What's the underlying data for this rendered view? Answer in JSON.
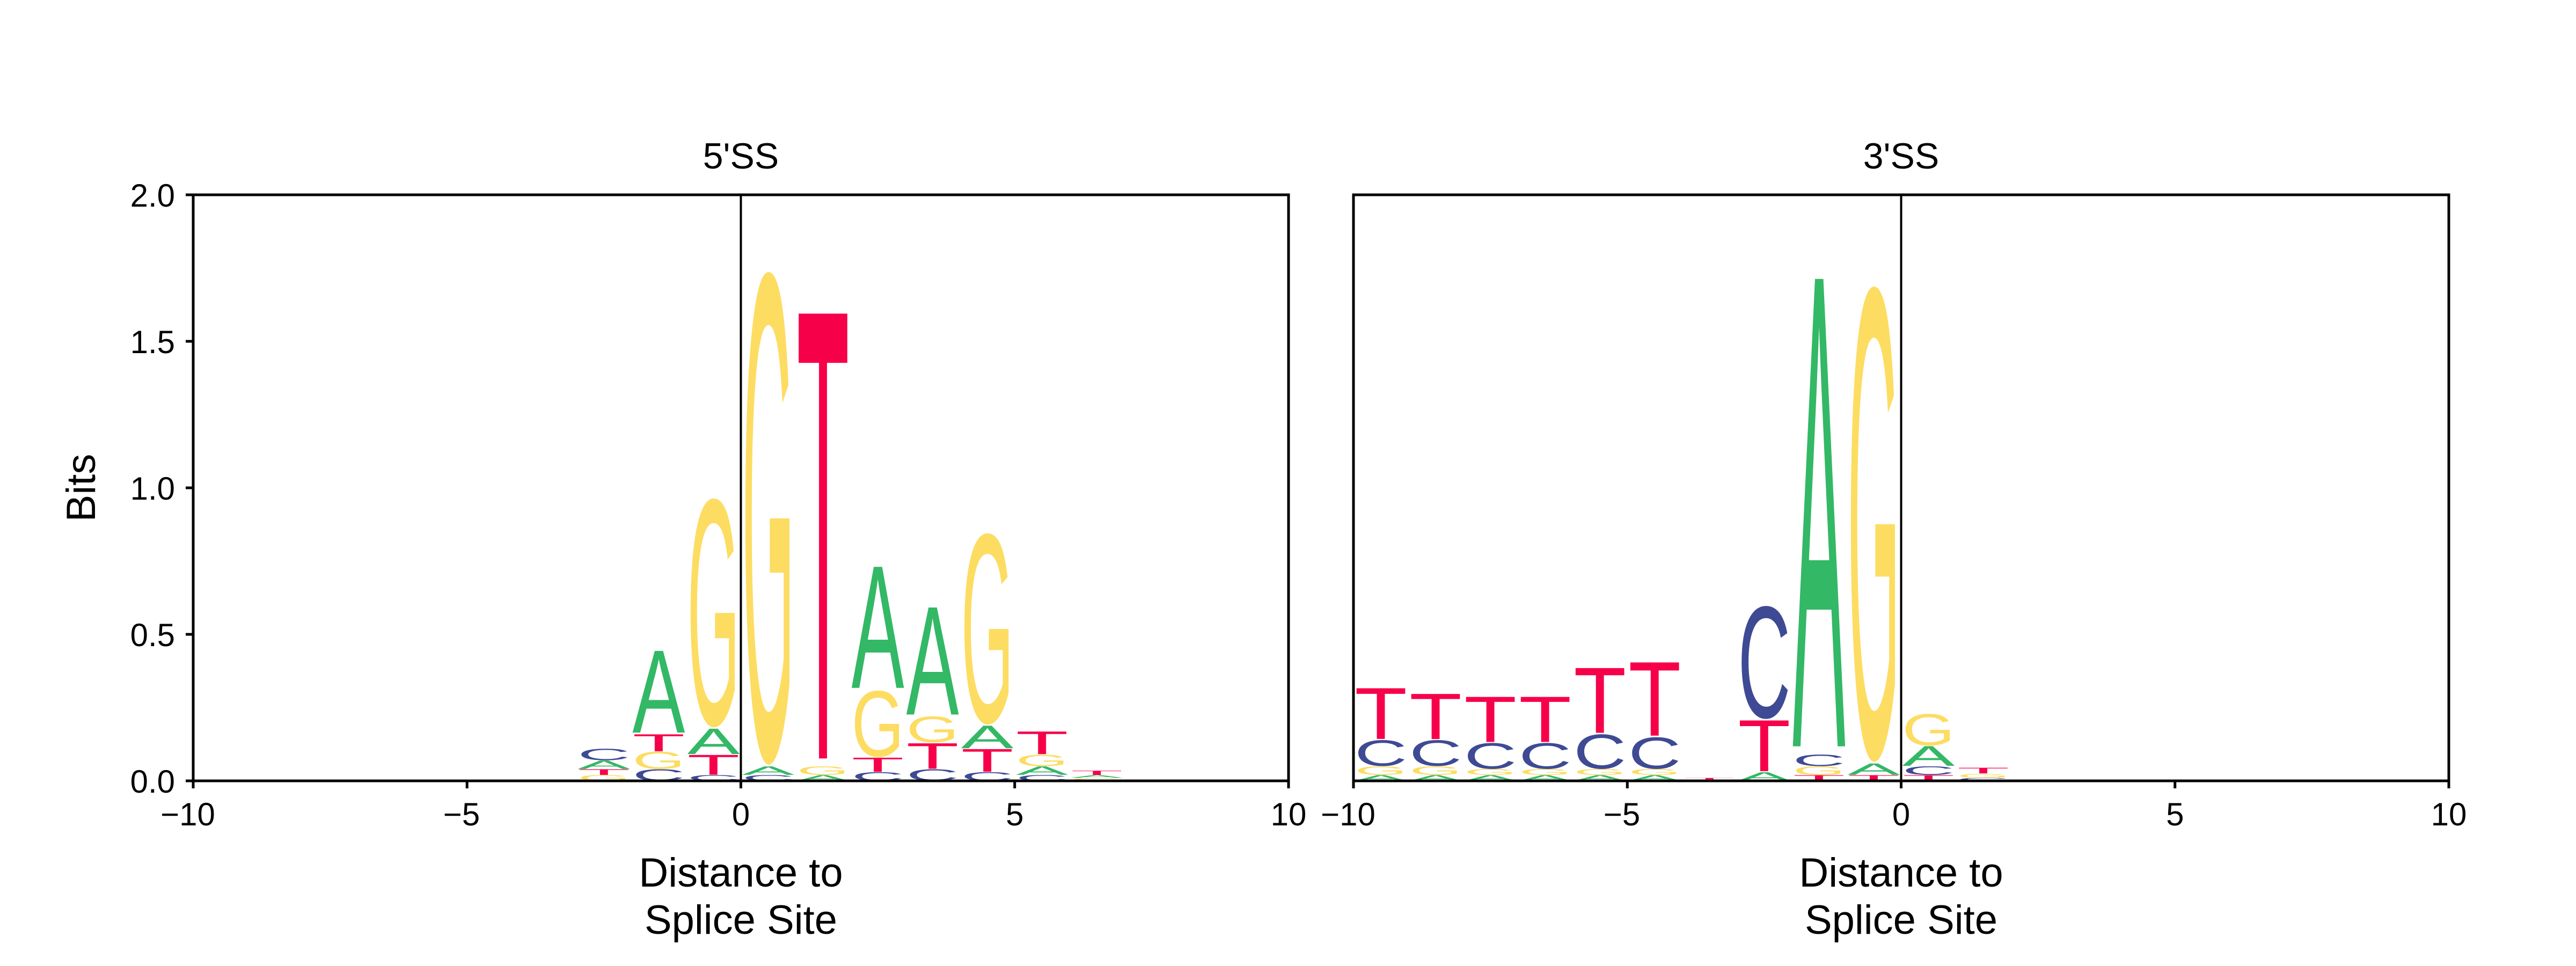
{
  "colors": {
    "A": "#33b866",
    "C": "#3f4a94",
    "G": "#fddc62",
    "T": "#f7004a",
    "axis": "#000000"
  },
  "chart_data": [
    {
      "type": "sequence-logo",
      "title": "5'SS",
      "xlabel": [
        "Distance to",
        "Splice Site"
      ],
      "ylabel": "Bits",
      "xlim": [
        -10,
        10
      ],
      "ylim": [
        0,
        2.0
      ],
      "xticks": [
        -10,
        -5,
        0,
        5,
        10
      ],
      "xtick_labels": [
        "−10",
        "−5",
        "0",
        "5",
        "10"
      ],
      "yticks": [
        0,
        0.5,
        1.0,
        1.5,
        2.0
      ],
      "ytick_labels": [
        "0.0",
        "0.5",
        "1.0",
        "1.5",
        "2.0"
      ],
      "splice_line_x": 0,
      "positions": [
        {
          "x": -2.5,
          "letters": [
            {
              "base": "G",
              "height": 0.02
            },
            {
              "base": "T",
              "height": 0.02
            },
            {
              "base": "A",
              "height": 0.03
            },
            {
              "base": "C",
              "height": 0.04
            }
          ]
        },
        {
          "x": -1.5,
          "letters": [
            {
              "base": "C",
              "height": 0.04
            },
            {
              "base": "G",
              "height": 0.06
            },
            {
              "base": "T",
              "height": 0.06
            },
            {
              "base": "A",
              "height": 0.29
            }
          ]
        },
        {
          "x": -0.5,
          "letters": [
            {
              "base": "C",
              "height": 0.02
            },
            {
              "base": "T",
              "height": 0.07
            },
            {
              "base": "A",
              "height": 0.09
            },
            {
              "base": "G",
              "height": 0.79
            }
          ]
        },
        {
          "x": 0.5,
          "letters": [
            {
              "base": "C",
              "height": 0.02
            },
            {
              "base": "A",
              "height": 0.03
            },
            {
              "base": "G",
              "height": 1.7
            }
          ]
        },
        {
          "x": 1.5,
          "letters": [
            {
              "base": "A",
              "height": 0.02
            },
            {
              "base": "G",
              "height": 0.03
            },
            {
              "base": "T",
              "height": 1.58
            }
          ]
        },
        {
          "x": 2.5,
          "letters": [
            {
              "base": "C",
              "height": 0.03
            },
            {
              "base": "T",
              "height": 0.05
            },
            {
              "base": "G",
              "height": 0.23
            },
            {
              "base": "A",
              "height": 0.43
            }
          ]
        },
        {
          "x": 3.5,
          "letters": [
            {
              "base": "C",
              "height": 0.04
            },
            {
              "base": "T",
              "height": 0.09
            },
            {
              "base": "G",
              "height": 0.09
            },
            {
              "base": "A",
              "height": 0.38
            }
          ]
        },
        {
          "x": 4.5,
          "letters": [
            {
              "base": "C",
              "height": 0.03
            },
            {
              "base": "T",
              "height": 0.08
            },
            {
              "base": "A",
              "height": 0.08
            },
            {
              "base": "G",
              "height": 0.66
            }
          ]
        },
        {
          "x": 5.5,
          "letters": [
            {
              "base": "C",
              "height": 0.02
            },
            {
              "base": "A",
              "height": 0.03
            },
            {
              "base": "G",
              "height": 0.04
            },
            {
              "base": "T",
              "height": 0.08
            }
          ]
        },
        {
          "x": 6.5,
          "letters": [
            {
              "base": "G",
              "height": 0.01
            },
            {
              "base": "A",
              "height": 0.01
            },
            {
              "base": "T",
              "height": 0.015
            }
          ]
        }
      ]
    },
    {
      "type": "sequence-logo",
      "title": "3'SS",
      "xlabel": [
        "Distance to",
        "Splice Site"
      ],
      "ylabel": "",
      "xlim": [
        -10,
        10
      ],
      "ylim": [
        0,
        2.0
      ],
      "xticks": [
        -10,
        -5,
        0,
        5,
        10
      ],
      "xtick_labels": [
        "−10",
        "−5",
        "0",
        "5",
        "10"
      ],
      "yticks": [],
      "ytick_labels": [],
      "splice_line_x": 0,
      "positions": [
        {
          "x": -9.5,
          "letters": [
            {
              "base": "A",
              "height": 0.02
            },
            {
              "base": "G",
              "height": 0.03
            },
            {
              "base": "C",
              "height": 0.09
            },
            {
              "base": "T",
              "height": 0.18
            }
          ]
        },
        {
          "x": -8.5,
          "letters": [
            {
              "base": "A",
              "height": 0.02
            },
            {
              "base": "G",
              "height": 0.03
            },
            {
              "base": "C",
              "height": 0.09
            },
            {
              "base": "T",
              "height": 0.16
            }
          ]
        },
        {
          "x": -7.5,
          "letters": [
            {
              "base": "A",
              "height": 0.02
            },
            {
              "base": "G",
              "height": 0.02
            },
            {
              "base": "C",
              "height": 0.09
            },
            {
              "base": "T",
              "height": 0.16
            }
          ]
        },
        {
          "x": -6.5,
          "letters": [
            {
              "base": "A",
              "height": 0.02
            },
            {
              "base": "G",
              "height": 0.02
            },
            {
              "base": "C",
              "height": 0.09
            },
            {
              "base": "T",
              "height": 0.16
            }
          ]
        },
        {
          "x": -5.5,
          "letters": [
            {
              "base": "A",
              "height": 0.02
            },
            {
              "base": "G",
              "height": 0.02
            },
            {
              "base": "C",
              "height": 0.12
            },
            {
              "base": "T",
              "height": 0.23
            }
          ]
        },
        {
          "x": -4.5,
          "letters": [
            {
              "base": "A",
              "height": 0.02
            },
            {
              "base": "G",
              "height": 0.02
            },
            {
              "base": "C",
              "height": 0.11
            },
            {
              "base": "T",
              "height": 0.26
            }
          ]
        },
        {
          "x": -3.5,
          "letters": [
            {
              "base": "G",
              "height": 0.005
            },
            {
              "base": "T",
              "height": 0.005
            }
          ]
        },
        {
          "x": -2.5,
          "letters": [
            {
              "base": "A",
              "height": 0.03
            },
            {
              "base": "T",
              "height": 0.18
            },
            {
              "base": "C",
              "height": 0.39
            }
          ]
        },
        {
          "x": -1.5,
          "letters": [
            {
              "base": "T",
              "height": 0.02
            },
            {
              "base": "G",
              "height": 0.03
            },
            {
              "base": "C",
              "height": 0.04
            },
            {
              "base": "A",
              "height": 1.66
            }
          ]
        },
        {
          "x": -0.5,
          "letters": [
            {
              "base": "T",
              "height": 0.02
            },
            {
              "base": "A",
              "height": 0.04
            },
            {
              "base": "G",
              "height": 1.64
            }
          ]
        },
        {
          "x": 0.5,
          "letters": [
            {
              "base": "T",
              "height": 0.02
            },
            {
              "base": "C",
              "height": 0.03
            },
            {
              "base": "A",
              "height": 0.07
            },
            {
              "base": "G",
              "height": 0.11
            }
          ]
        },
        {
          "x": 1.5,
          "letters": [
            {
              "base": "C",
              "height": 0.01
            },
            {
              "base": "G",
              "height": 0.015
            },
            {
              "base": "T",
              "height": 0.02
            }
          ]
        }
      ]
    }
  ]
}
